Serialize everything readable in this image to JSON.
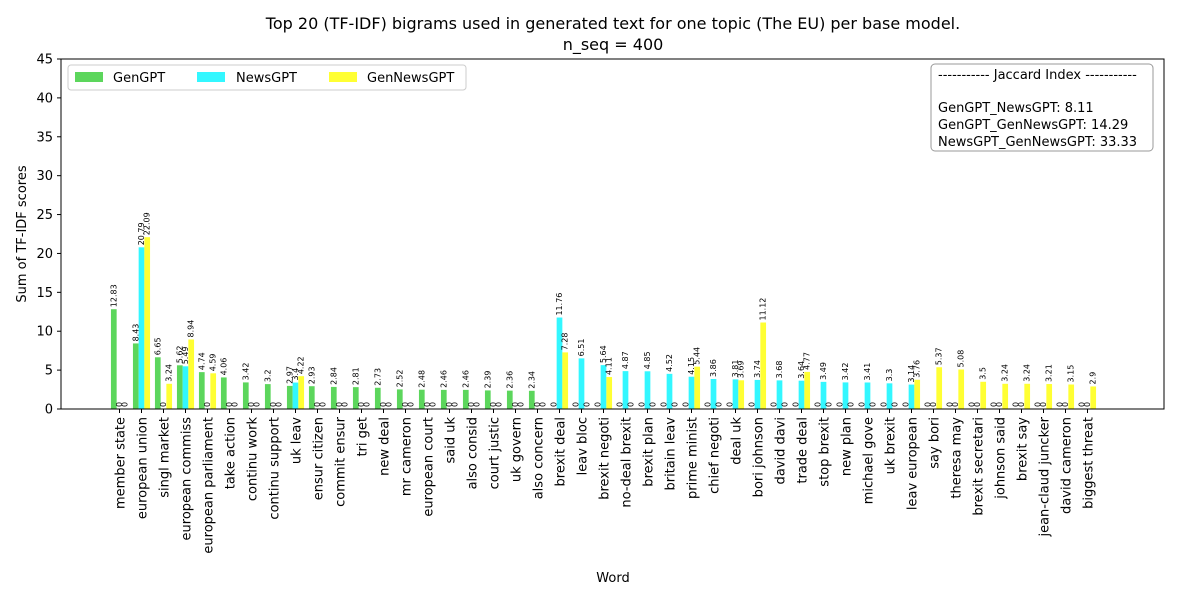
{
  "colors": {
    "GenGPT": "#5cd65c",
    "NewsGPT": "#33f7ff",
    "GenNewsGPT": "#ffff33"
  },
  "chart_data": {
    "type": "bar",
    "title": "Top 20 (TF-IDF) bigrams used in generated text for one topic (The EU) per base model.",
    "subtitle": "n_seq = 400",
    "xlabel": "Word",
    "ylabel": "Sum of TF-IDF scores",
    "ylim": [
      0,
      45
    ],
    "yticks": [
      0,
      5,
      10,
      15,
      20,
      25,
      30,
      35,
      40,
      45
    ],
    "grid": false,
    "legend_position": "top-left",
    "categories": [
      "member state",
      "european union",
      "singl market",
      "european commiss",
      "european parliament",
      "take action",
      "continu work",
      "continu support",
      "uk leav",
      "ensur citizen",
      "commit ensur",
      "tri get",
      "new deal",
      "mr cameron",
      "european court",
      "said uk",
      "also consid",
      "court justic",
      "uk govern",
      "also concern",
      "brexit deal",
      "leav bloc",
      "brexit negoti",
      "no-deal brexit",
      "brexit plan",
      "britain leav",
      "prime minist",
      "chief negoti",
      "deal uk",
      "bori johnson",
      "david davi",
      "trade deal",
      "stop brexit",
      "new plan",
      "michael gove",
      "uk brexit",
      "leav european",
      "say bori",
      "theresa may",
      "brexit secretari",
      "johnson said",
      "brexit say",
      "jean-claud juncker",
      "david cameron",
      "biggest threat"
    ],
    "series": [
      {
        "name": "GenGPT",
        "values": [
          12.83,
          8.43,
          6.65,
          5.62,
          4.74,
          4.06,
          3.42,
          3.2,
          2.97,
          2.93,
          2.84,
          2.81,
          2.73,
          2.52,
          2.48,
          2.46,
          2.46,
          2.39,
          2.36,
          2.34,
          0,
          0,
          0,
          0,
          0,
          0,
          0,
          0,
          0,
          0,
          0,
          0,
          0,
          0,
          0,
          0,
          0,
          0,
          0,
          0,
          0,
          0,
          0,
          0,
          0
        ]
      },
      {
        "name": "NewsGPT",
        "values": [
          0,
          20.79,
          0,
          5.49,
          0,
          0,
          0,
          0,
          3.4,
          0,
          0,
          0,
          0,
          0,
          0,
          0,
          0,
          0,
          0,
          0,
          11.76,
          6.51,
          5.64,
          4.87,
          4.85,
          4.52,
          4.15,
          3.86,
          3.81,
          3.74,
          3.68,
          3.64,
          3.49,
          3.42,
          3.41,
          3.3,
          3.14,
          0,
          0,
          0,
          0,
          0,
          0,
          0,
          0
        ]
      },
      {
        "name": "GenNewsGPT",
        "values": [
          0,
          22.09,
          3.24,
          8.94,
          4.59,
          0,
          0,
          0,
          4.22,
          0,
          0,
          0,
          0,
          0,
          0,
          0,
          0,
          0,
          0,
          0,
          7.28,
          0,
          4.11,
          0,
          0,
          0,
          5.44,
          0,
          3.69,
          11.12,
          0,
          4.77,
          0,
          0,
          0,
          0,
          3.76,
          5.37,
          5.08,
          3.5,
          3.24,
          3.24,
          3.21,
          3.15,
          2.9
        ]
      }
    ],
    "value_labels": {
      "GenGPT": [
        "12.83",
        "8.43",
        "6.65",
        "5.62",
        "4.74",
        "4.06",
        "3.42",
        "3.2",
        "2.97",
        "2.93",
        "2.84",
        "2.81",
        "2.73",
        "2.52",
        "2.48",
        "2.46",
        "2.46",
        "2.39",
        "2.36",
        "2.34",
        "0",
        "0",
        "0",
        "0",
        "0",
        "0",
        "0",
        "0",
        "0",
        "0",
        "0",
        "0",
        "0",
        "0",
        "0",
        "0",
        "0",
        "0",
        "0",
        "0",
        "0",
        "0",
        "0",
        "0",
        "0"
      ],
      "NewsGPT": [
        "0",
        "20.79",
        "0",
        "5.49",
        "0",
        "0",
        "0",
        "0",
        "3.4",
        "0",
        "0",
        "0",
        "0",
        "0",
        "0",
        "0",
        "0",
        "0",
        "0",
        "0",
        "11.76",
        "6.51",
        "5.64",
        "4.87",
        "4.85",
        "4.52",
        "4.15",
        "3.86",
        "3.81",
        "3.74",
        "3.68",
        "3.64",
        "3.49",
        "3.42",
        "3.41",
        "3.3",
        "3.14",
        "0",
        "0",
        "0",
        "0",
        "0",
        "0",
        "0",
        "0"
      ],
      "GenNewsGPT": [
        "0",
        "22.09",
        "3.24",
        "8.94",
        "4.59",
        "0",
        "0",
        "0",
        "4.22",
        "0",
        "0",
        "0",
        "0",
        "0",
        "0",
        "0",
        "0",
        "0",
        "0",
        "0",
        "7.28",
        "0",
        "4.11",
        "0",
        "0",
        "0",
        "5.44",
        "0",
        "3.69",
        "11.12",
        "0",
        "4.77",
        "0",
        "0",
        "0",
        "0",
        "3.76",
        "5.37",
        "5.08",
        "3.5",
        "3.24",
        "3.24",
        "3.21",
        "3.15",
        "2.9"
      ]
    },
    "annotation_box": {
      "header": "----------- Jaccard Index -----------",
      "lines": [
        "GenGPT_NewsGPT: 8.11",
        "GenGPT_GenNewsGPT: 14.29",
        "NewsGPT_GenNewsGPT: 33.33"
      ]
    }
  }
}
